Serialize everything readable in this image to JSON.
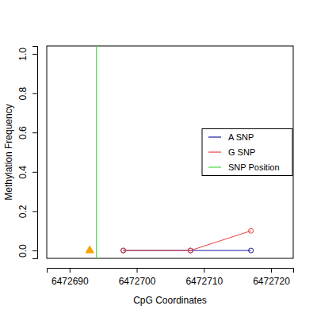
{
  "chart_data": {
    "type": "line",
    "x_label": "CpG Coordinates",
    "y_label": "Methylation Frequency",
    "xlim": [
      6472686.6,
      6472723.3
    ],
    "xticks": [
      6472690,
      6472700,
      6472710,
      6472720
    ],
    "ylim": [
      -0.04,
      1.04
    ],
    "yticks": [
      {
        "value": 0,
        "label": "0.0"
      },
      0.2,
      0.4,
      0.6,
      0.8,
      {
        "value": 1,
        "label": "1.0"
      }
    ],
    "legend": "right",
    "series": [
      {
        "name": "A SNP",
        "color": "#1a1aa6",
        "marker": "circle",
        "line_style": "solid",
        "x": [
          6472698,
          6472708,
          6472717
        ],
        "values": [
          0,
          0,
          0
        ]
      },
      {
        "name": "G SNP",
        "color": "#e8423a",
        "marker": "circle",
        "line_style": "solid",
        "x": [
          6472698,
          6472708,
          6472717
        ],
        "values": [
          0,
          0,
          0.1
        ]
      },
      {
        "name": "SNP Position",
        "type": "vline",
        "color": "#4cd94c",
        "x": 6472694
      }
    ],
    "snp_marker": {
      "x": 6472693,
      "y": 0,
      "color": "#f5a300",
      "marker": "triangle"
    }
  }
}
